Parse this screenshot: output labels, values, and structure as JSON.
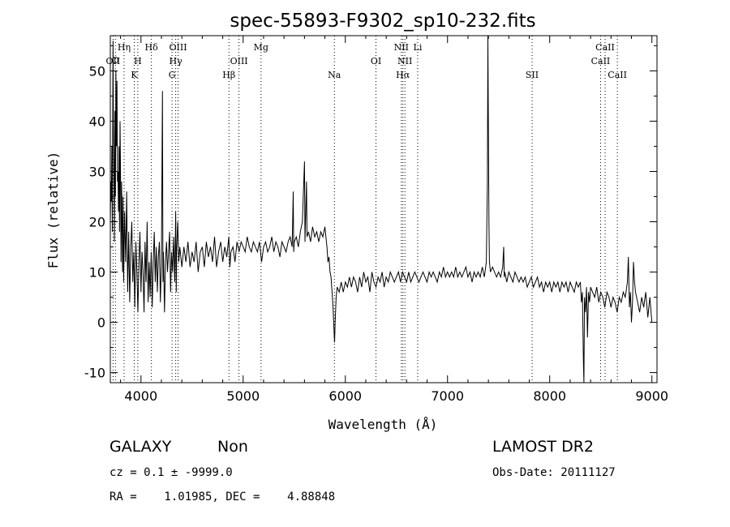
{
  "chart_data": {
    "type": "line",
    "title": "spec-55893-F9302_sp10-232.fits",
    "xlabel": "Wavelength (Å)",
    "ylabel": "Flux (relative)",
    "xlim": [
      3700,
      9050
    ],
    "ylim": [
      -12,
      57
    ],
    "xticks": [
      4000,
      5000,
      6000,
      7000,
      8000,
      9000
    ],
    "yticks": [
      -10,
      0,
      10,
      20,
      30,
      40,
      50
    ],
    "grid": false,
    "spectrum": [
      [
        3700,
        20
      ],
      [
        3705,
        28
      ],
      [
        3710,
        24
      ],
      [
        3715,
        35
      ],
      [
        3720,
        18
      ],
      [
        3725,
        45
      ],
      [
        3727,
        56
      ],
      [
        3730,
        40
      ],
      [
        3735,
        30
      ],
      [
        3740,
        16
      ],
      [
        3745,
        42
      ],
      [
        3750,
        25
      ],
      [
        3755,
        50
      ],
      [
        3760,
        35
      ],
      [
        3765,
        48
      ],
      [
        3770,
        28
      ],
      [
        3775,
        30
      ],
      [
        3780,
        22
      ],
      [
        3785,
        35
      ],
      [
        3790,
        18
      ],
      [
        3795,
        40
      ],
      [
        3800,
        30
      ],
      [
        3805,
        12
      ],
      [
        3810,
        28
      ],
      [
        3815,
        20
      ],
      [
        3820,
        10
      ],
      [
        3825,
        25
      ],
      [
        3830,
        8
      ],
      [
        3840,
        22
      ],
      [
        3850,
        12
      ],
      [
        3860,
        26
      ],
      [
        3870,
        6
      ],
      [
        3880,
        18
      ],
      [
        3890,
        4
      ],
      [
        3900,
        15
      ],
      [
        3910,
        20
      ],
      [
        3920,
        8
      ],
      [
        3930,
        14
      ],
      [
        3940,
        3
      ],
      [
        3950,
        16
      ],
      [
        3960,
        10
      ],
      [
        3970,
        2
      ],
      [
        3980,
        12
      ],
      [
        3990,
        18
      ],
      [
        4000,
        6
      ],
      [
        4010,
        14
      ],
      [
        4020,
        10
      ],
      [
        4030,
        2
      ],
      [
        4040,
        16
      ],
      [
        4050,
        8
      ],
      [
        4060,
        20
      ],
      [
        4070,
        4
      ],
      [
        4080,
        12
      ],
      [
        4090,
        5
      ],
      [
        4100,
        14
      ],
      [
        4110,
        3
      ],
      [
        4120,
        12
      ],
      [
        4130,
        18
      ],
      [
        4140,
        8
      ],
      [
        4150,
        15
      ],
      [
        4160,
        6
      ],
      [
        4170,
        13
      ],
      [
        4180,
        16
      ],
      [
        4190,
        4
      ],
      [
        4200,
        12
      ],
      [
        4210,
        46
      ],
      [
        4215,
        8
      ],
      [
        4220,
        14
      ],
      [
        4230,
        2
      ],
      [
        4240,
        12
      ],
      [
        4250,
        16
      ],
      [
        4260,
        10
      ],
      [
        4270,
        14
      ],
      [
        4280,
        18
      ],
      [
        4290,
        6
      ],
      [
        4300,
        14
      ],
      [
        4310,
        10
      ],
      [
        4320,
        17
      ],
      [
        4330,
        8
      ],
      [
        4340,
        22
      ],
      [
        4345,
        6
      ],
      [
        4350,
        15
      ],
      [
        4360,
        20
      ],
      [
        4370,
        12
      ],
      [
        4380,
        15
      ],
      [
        4400,
        11
      ],
      [
        4420,
        15
      ],
      [
        4440,
        12
      ],
      [
        4460,
        16
      ],
      [
        4480,
        11
      ],
      [
        4500,
        14
      ],
      [
        4520,
        12
      ],
      [
        4540,
        16
      ],
      [
        4560,
        10
      ],
      [
        4580,
        14
      ],
      [
        4600,
        15
      ],
      [
        4620,
        11
      ],
      [
        4640,
        16
      ],
      [
        4660,
        13
      ],
      [
        4680,
        15
      ],
      [
        4700,
        12
      ],
      [
        4720,
        17
      ],
      [
        4740,
        11
      ],
      [
        4760,
        14
      ],
      [
        4780,
        16
      ],
      [
        4800,
        12
      ],
      [
        4820,
        15
      ],
      [
        4840,
        13
      ],
      [
        4860,
        17
      ],
      [
        4870,
        11
      ],
      [
        4880,
        14
      ],
      [
        4900,
        15
      ],
      [
        4920,
        12
      ],
      [
        4940,
        16
      ],
      [
        4960,
        14
      ],
      [
        4980,
        16
      ],
      [
        5000,
        15
      ],
      [
        5020,
        14
      ],
      [
        5040,
        17
      ],
      [
        5060,
        15
      ],
      [
        5080,
        14
      ],
      [
        5100,
        16
      ],
      [
        5120,
        15
      ],
      [
        5140,
        14
      ],
      [
        5160,
        16
      ],
      [
        5180,
        12
      ],
      [
        5200,
        15
      ],
      [
        5220,
        16
      ],
      [
        5240,
        14
      ],
      [
        5260,
        15
      ],
      [
        5280,
        17
      ],
      [
        5300,
        14
      ],
      [
        5320,
        16
      ],
      [
        5340,
        15
      ],
      [
        5360,
        13
      ],
      [
        5380,
        16
      ],
      [
        5400,
        15
      ],
      [
        5420,
        14
      ],
      [
        5440,
        16
      ],
      [
        5460,
        17
      ],
      [
        5480,
        15
      ],
      [
        5490,
        26
      ],
      [
        5495,
        14
      ],
      [
        5500,
        16
      ],
      [
        5520,
        17
      ],
      [
        5540,
        15
      ],
      [
        5560,
        18
      ],
      [
        5580,
        20
      ],
      [
        5600,
        32
      ],
      [
        5605,
        16
      ],
      [
        5620,
        28
      ],
      [
        5625,
        17
      ],
      [
        5640,
        18
      ],
      [
        5660,
        16
      ],
      [
        5680,
        19
      ],
      [
        5700,
        17
      ],
      [
        5720,
        18
      ],
      [
        5740,
        16
      ],
      [
        5760,
        18
      ],
      [
        5780,
        17
      ],
      [
        5800,
        19
      ],
      [
        5810,
        17
      ],
      [
        5820,
        15
      ],
      [
        5830,
        12
      ],
      [
        5840,
        13
      ],
      [
        5850,
        10
      ],
      [
        5860,
        9
      ],
      [
        5870,
        6
      ],
      [
        5880,
        3
      ],
      [
        5890,
        -2
      ],
      [
        5895,
        -4
      ],
      [
        5900,
        0
      ],
      [
        5910,
        5
      ],
      [
        5920,
        7
      ],
      [
        5940,
        6
      ],
      [
        5960,
        8
      ],
      [
        5980,
        6
      ],
      [
        6000,
        8
      ],
      [
        6020,
        7
      ],
      [
        6040,
        9
      ],
      [
        6060,
        7
      ],
      [
        6080,
        9
      ],
      [
        6100,
        8
      ],
      [
        6120,
        6
      ],
      [
        6140,
        9
      ],
      [
        6160,
        7
      ],
      [
        6180,
        10
      ],
      [
        6200,
        8
      ],
      [
        6220,
        9
      ],
      [
        6240,
        6
      ],
      [
        6260,
        10
      ],
      [
        6280,
        8
      ],
      [
        6300,
        7
      ],
      [
        6320,
        9
      ],
      [
        6340,
        8
      ],
      [
        6360,
        10
      ],
      [
        6380,
        7
      ],
      [
        6400,
        9
      ],
      [
        6420,
        8
      ],
      [
        6440,
        10
      ],
      [
        6460,
        9
      ],
      [
        6480,
        8
      ],
      [
        6500,
        9
      ],
      [
        6520,
        10
      ],
      [
        6540,
        8
      ],
      [
        6560,
        10
      ],
      [
        6580,
        9
      ],
      [
        6600,
        8
      ],
      [
        6620,
        10
      ],
      [
        6640,
        8
      ],
      [
        6660,
        9
      ],
      [
        6680,
        10
      ],
      [
        6700,
        9
      ],
      [
        6720,
        8
      ],
      [
        6740,
        9
      ],
      [
        6760,
        10
      ],
      [
        6780,
        9
      ],
      [
        6800,
        8
      ],
      [
        6820,
        10
      ],
      [
        6840,
        9
      ],
      [
        6860,
        10
      ],
      [
        6880,
        9
      ],
      [
        6900,
        8
      ],
      [
        6920,
        10
      ],
      [
        6940,
        9
      ],
      [
        6960,
        11
      ],
      [
        6980,
        9
      ],
      [
        7000,
        10
      ],
      [
        7020,
        9
      ],
      [
        7040,
        10
      ],
      [
        7060,
        9
      ],
      [
        7080,
        11
      ],
      [
        7100,
        9
      ],
      [
        7120,
        10
      ],
      [
        7140,
        9
      ],
      [
        7160,
        10
      ],
      [
        7180,
        11
      ],
      [
        7200,
        9
      ],
      [
        7220,
        10
      ],
      [
        7240,
        8
      ],
      [
        7260,
        10
      ],
      [
        7280,
        9
      ],
      [
        7300,
        10
      ],
      [
        7320,
        9
      ],
      [
        7340,
        11
      ],
      [
        7360,
        9
      ],
      [
        7380,
        12
      ],
      [
        7390,
        28
      ],
      [
        7395,
        57
      ],
      [
        7400,
        40
      ],
      [
        7405,
        20
      ],
      [
        7410,
        12
      ],
      [
        7420,
        10
      ],
      [
        7440,
        11
      ],
      [
        7460,
        10
      ],
      [
        7480,
        9
      ],
      [
        7500,
        10
      ],
      [
        7520,
        9
      ],
      [
        7540,
        11
      ],
      [
        7550,
        15
      ],
      [
        7555,
        9
      ],
      [
        7560,
        10
      ],
      [
        7580,
        8
      ],
      [
        7600,
        10
      ],
      [
        7620,
        9
      ],
      [
        7640,
        8
      ],
      [
        7660,
        10
      ],
      [
        7680,
        9
      ],
      [
        7700,
        8
      ],
      [
        7720,
        9
      ],
      [
        7740,
        8
      ],
      [
        7760,
        9
      ],
      [
        7780,
        7
      ],
      [
        7800,
        8
      ],
      [
        7820,
        9
      ],
      [
        7840,
        7
      ],
      [
        7860,
        8
      ],
      [
        7880,
        9
      ],
      [
        7900,
        7
      ],
      [
        7920,
        8
      ],
      [
        7940,
        6
      ],
      [
        7960,
        8
      ],
      [
        7980,
        7
      ],
      [
        8000,
        8
      ],
      [
        8020,
        6
      ],
      [
        8040,
        8
      ],
      [
        8060,
        7
      ],
      [
        8080,
        8
      ],
      [
        8100,
        6
      ],
      [
        8120,
        8
      ],
      [
        8140,
        7
      ],
      [
        8160,
        8
      ],
      [
        8180,
        6
      ],
      [
        8200,
        8
      ],
      [
        8220,
        7
      ],
      [
        8240,
        6
      ],
      [
        8260,
        8
      ],
      [
        8280,
        7
      ],
      [
        8300,
        8
      ],
      [
        8310,
        4
      ],
      [
        8320,
        6
      ],
      [
        8330,
        -8
      ],
      [
        8335,
        -12
      ],
      [
        8340,
        5
      ],
      [
        8350,
        2
      ],
      [
        8360,
        7
      ],
      [
        8370,
        -3
      ],
      [
        8380,
        6
      ],
      [
        8390,
        4
      ],
      [
        8400,
        7
      ],
      [
        8420,
        6
      ],
      [
        8440,
        5
      ],
      [
        8460,
        7
      ],
      [
        8480,
        4
      ],
      [
        8500,
        6
      ],
      [
        8520,
        5
      ],
      [
        8540,
        3
      ],
      [
        8560,
        6
      ],
      [
        8580,
        5
      ],
      [
        8600,
        3
      ],
      [
        8620,
        5
      ],
      [
        8640,
        4
      ],
      [
        8660,
        2
      ],
      [
        8680,
        5
      ],
      [
        8700,
        4
      ],
      [
        8720,
        6
      ],
      [
        8740,
        5
      ],
      [
        8760,
        8
      ],
      [
        8770,
        13
      ],
      [
        8780,
        3
      ],
      [
        8790,
        6
      ],
      [
        8800,
        0
      ],
      [
        8810,
        4
      ],
      [
        8820,
        12
      ],
      [
        8830,
        8
      ],
      [
        8840,
        6
      ],
      [
        8860,
        4
      ],
      [
        8880,
        2
      ],
      [
        8900,
        5
      ],
      [
        8920,
        3
      ],
      [
        8940,
        6
      ],
      [
        8960,
        1
      ],
      [
        8980,
        5
      ],
      [
        9000,
        0
      ]
    ],
    "line_markers": [
      {
        "wavelength": 3727,
        "label": "OII",
        "row": 3
      },
      {
        "wavelength": 3750,
        "label": "O",
        "row": 2
      },
      {
        "wavelength": 3835,
        "label": "Hη",
        "row": 1
      },
      {
        "wavelength": 3934,
        "label": "K",
        "row": 4
      },
      {
        "wavelength": 3969,
        "label": "H",
        "row": 3
      },
      {
        "wavelength": 4102,
        "label": "Hδ",
        "row": 1
      },
      {
        "wavelength": 4304,
        "label": "G",
        "row": 4
      },
      {
        "wavelength": 4340,
        "label": "Hγ",
        "row": 3
      },
      {
        "wavelength": 4363,
        "label": "OIII",
        "row": 1
      },
      {
        "wavelength": 4861,
        "label": "Hβ",
        "row": 4
      },
      {
        "wavelength": 4959,
        "label": "OIII",
        "row": 3
      },
      {
        "wavelength": 5175,
        "label": "Mg",
        "row": 1
      },
      {
        "wavelength": 5893,
        "label": "Na",
        "row": 4
      },
      {
        "wavelength": 6300,
        "label": "OI",
        "row": 3
      },
      {
        "wavelength": 6548,
        "label": "NII",
        "row": 1
      },
      {
        "wavelength": 6563,
        "label": "Hα",
        "row": 4
      },
      {
        "wavelength": 6583,
        "label": "NII",
        "row": 3
      },
      {
        "wavelength": 6708,
        "label": "Li",
        "row": 1
      },
      {
        "wavelength": 7828,
        "label": "SII",
        "row": 4
      },
      {
        "wavelength": 8498,
        "label": "CaII",
        "row": 3
      },
      {
        "wavelength": 8542,
        "label": "CaII",
        "row": 1
      },
      {
        "wavelength": 8662,
        "label": "CaII",
        "row": 4
      }
    ]
  },
  "info": {
    "class": "GALAXY",
    "subclass": "Non",
    "survey": "LAMOST DR2",
    "cz_line": "cz = 0.1 ± -9999.0",
    "obs_date": "Obs-Date: 20111127",
    "coords_line": "RA =    1.01985, DEC =    4.88848"
  }
}
